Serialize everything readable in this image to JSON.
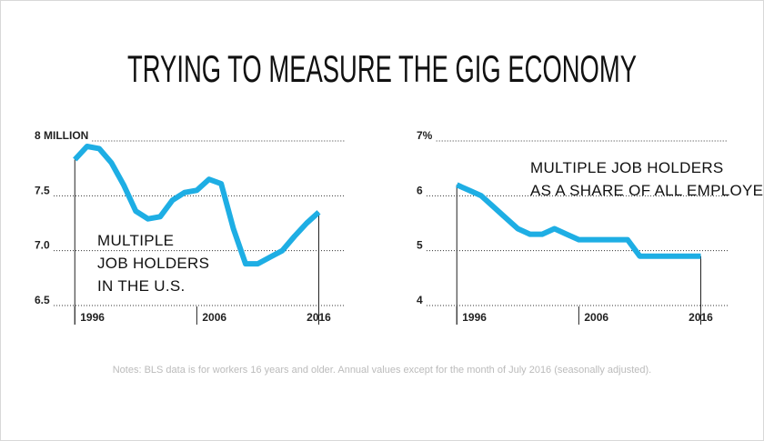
{
  "title": "TRYING TO MEASURE THE GIG ECONOMY",
  "note": "Notes: BLS data is for workers 16 years and older. Annual values except for the month of July 2016 (seasonally adjusted).",
  "chart_data": [
    {
      "type": "line",
      "color": "#1eaee4",
      "grid": true,
      "annotation": [
        "MULTIPLE",
        "JOB HOLDERS",
        "IN THE U.S."
      ],
      "x": [
        1996,
        1997,
        1998,
        1999,
        2000,
        2001,
        2002,
        2003,
        2004,
        2005,
        2006,
        2007,
        2008,
        2009,
        2010,
        2011,
        2012,
        2013,
        2014,
        2015,
        2016
      ],
      "values": [
        7.83,
        7.95,
        7.93,
        7.8,
        7.6,
        7.36,
        7.29,
        7.31,
        7.46,
        7.53,
        7.55,
        7.65,
        7.61,
        7.2,
        6.88,
        6.88,
        6.94,
        7.0,
        7.13,
        7.25,
        7.35
      ],
      "xlim": [
        1992.7,
        2018.2
      ],
      "xticks": [
        1996,
        2006,
        2016
      ],
      "ylim": [
        6.5,
        8
      ],
      "yticks": [
        6.5,
        {
          "value": 7,
          "label": "7.0"
        },
        7.5,
        {
          "value": 8,
          "label": "8 MILLION"
        }
      ]
    },
    {
      "type": "line",
      "color": "#1eaee4",
      "grid": true,
      "annotation": [
        "MULTIPLE JOB HOLDERS",
        "AS A SHARE OF ALL EMPLOYED"
      ],
      "x": [
        1996,
        1997,
        1998,
        1999,
        2000,
        2001,
        2002,
        2003,
        2004,
        2005,
        2006,
        2007,
        2008,
        2009,
        2010,
        2011,
        2012,
        2013,
        2014,
        2015,
        2016
      ],
      "values": [
        6.2,
        6.1,
        6.0,
        5.8,
        5.6,
        5.4,
        5.3,
        5.3,
        5.4,
        5.3,
        5.2,
        5.2,
        5.2,
        5.2,
        5.2,
        4.9,
        4.9,
        4.9,
        4.9,
        4.9,
        4.9
      ],
      "xlim": [
        1992.7,
        2018.2
      ],
      "xticks": [
        1996,
        2006,
        2016
      ],
      "ylim": [
        4,
        7
      ],
      "yticks": [
        4,
        5,
        6,
        {
          "value": 7,
          "label": "7%"
        }
      ]
    }
  ]
}
